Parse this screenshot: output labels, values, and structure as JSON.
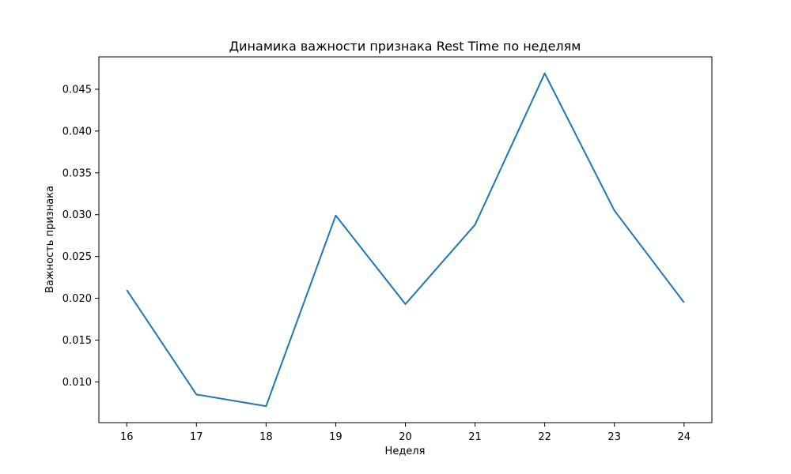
{
  "chart_data": {
    "type": "line",
    "title": "Динамика важности признака Rest Time по неделям",
    "xlabel": "Неделя",
    "ylabel": "Важность признака",
    "x": [
      16,
      17,
      18,
      19,
      20,
      21,
      22,
      23,
      24
    ],
    "series": [
      {
        "values": [
          0.021,
          0.0085,
          0.0071,
          0.0299,
          0.0193,
          0.0288,
          0.0469,
          0.0305,
          0.0195
        ],
        "color": "#1f77b4"
      }
    ],
    "xticks": [
      "16",
      "17",
      "18",
      "19",
      "20",
      "21",
      "22",
      "23",
      "24"
    ],
    "yticks": [
      "0.010",
      "0.015",
      "0.020",
      "0.025",
      "0.030",
      "0.035",
      "0.040",
      "0.045"
    ],
    "xlim": [
      15.6,
      24.4
    ],
    "ylim": [
      0.00513,
      0.04887
    ],
    "grid": false
  }
}
